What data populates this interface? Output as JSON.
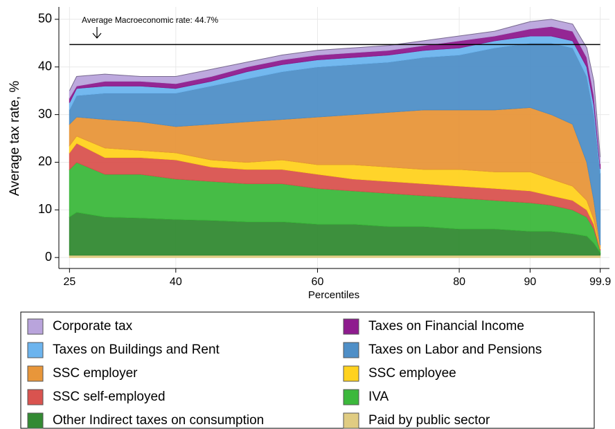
{
  "chart_data": {
    "type": "stacked_area",
    "x_label": "Percentiles",
    "y_label": "Average tax rate, %",
    "x": [
      25,
      26,
      30,
      35,
      40,
      45,
      50,
      55,
      60,
      65,
      70,
      75,
      80,
      85,
      90,
      93,
      96,
      98,
      99,
      99.9
    ],
    "xlim": [
      23.5,
      101.2
    ],
    "xticks": [
      25,
      40,
      60,
      80,
      90,
      99.9
    ],
    "ylim": [
      -2.3,
      52.6
    ],
    "yticks": [
      0,
      10,
      20,
      30,
      40,
      50
    ],
    "grid": true,
    "reference_line": {
      "value": 44.7,
      "label": "Average Macroeconomic rate: 44.7%"
    },
    "series": [
      {
        "name": "Corporate tax",
        "color": "#b9a4dc",
        "values": [
          1.5,
          2,
          1.5,
          1,
          1.5,
          1.5,
          1,
          1,
          1,
          1,
          1,
          1,
          1,
          1,
          1.5,
          1.5,
          1.5,
          2,
          3,
          1.5
        ]
      },
      {
        "name": "Taxes on Financial Income",
        "color": "#8e1b8e",
        "values": [
          1,
          0.5,
          1,
          1,
          1,
          1,
          1,
          1,
          1,
          1,
          1,
          1,
          1.5,
          1,
          1.5,
          2,
          2,
          2,
          2,
          1
        ]
      },
      {
        "name": "Taxes on Buildings and Rent",
        "color": "#6cb4ee",
        "values": [
          1.5,
          1.5,
          1.5,
          1.5,
          1,
          1,
          1.5,
          1.5,
          1.5,
          1.5,
          1.5,
          1.5,
          1.5,
          1.5,
          1.5,
          1.5,
          1.5,
          2,
          2,
          1
        ]
      },
      {
        "name": "Taxes on Labor and Pensions",
        "color": "#4f8fc7",
        "values": [
          3,
          4.5,
          5.5,
          6,
          7,
          8,
          9,
          10,
          10.5,
          10.5,
          10.5,
          11,
          11.5,
          13,
          13.5,
          15,
          16,
          18,
          18,
          15
        ]
      },
      {
        "name": "SSC employer",
        "color": "#e8963a",
        "values": [
          4.5,
          4,
          6,
          6,
          5.5,
          7.5,
          8.5,
          8.5,
          10,
          10.5,
          11.5,
          12.5,
          12.5,
          13,
          13.5,
          13.5,
          13,
          8,
          4,
          0.5
        ]
      },
      {
        "name": "SSC employee",
        "color": "#ffd21f",
        "values": [
          1.5,
          1.5,
          2,
          1.5,
          1.5,
          1.5,
          1.5,
          2,
          2,
          3,
          3,
          3,
          3.5,
          3.5,
          4,
          3.5,
          3,
          2,
          1,
          0.3
        ]
      },
      {
        "name": "SSC self-employed",
        "color": "#d9534f",
        "values": [
          3.5,
          4,
          3.5,
          3.5,
          4,
          3,
          3,
          3,
          3,
          2.5,
          2.5,
          2.5,
          2.5,
          2.5,
          2.5,
          2,
          2,
          1.5,
          1,
          0.3
        ]
      },
      {
        "name": "IVA",
        "color": "#3cb83c",
        "values": [
          10,
          10.5,
          9,
          9.2,
          8.5,
          8.2,
          8,
          8,
          7.5,
          7,
          7,
          6.5,
          6.5,
          6,
          6,
          5.5,
          5,
          4,
          3,
          0.5
        ]
      },
      {
        "name": "Other Indirect taxes on consumption",
        "color": "#338a33",
        "values": [
          8,
          9,
          8,
          7.8,
          7.5,
          7.3,
          7,
          7,
          6.5,
          6.5,
          6,
          6,
          5.5,
          5.5,
          5,
          5,
          4.5,
          4,
          2.5,
          0.5
        ]
      },
      {
        "name": "Paid by public sector",
        "color": "#e0cc82",
        "values": [
          0.5,
          0.5,
          0.5,
          0.5,
          0.5,
          0.5,
          0.5,
          0.5,
          0.5,
          0.5,
          0.5,
          0.5,
          0.5,
          0.5,
          0.5,
          0.5,
          0.5,
          0.5,
          0.5,
          0.5
        ]
      }
    ]
  }
}
